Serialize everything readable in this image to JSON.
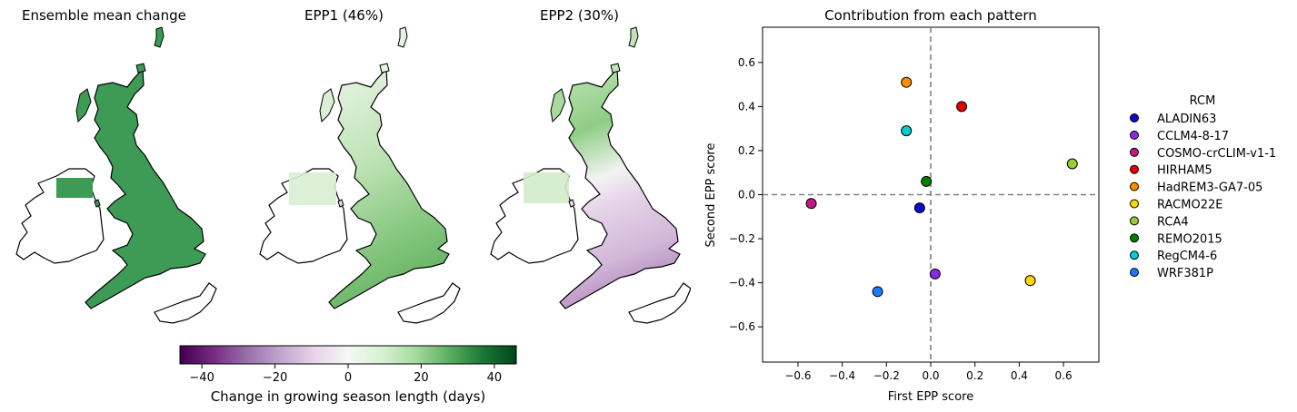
{
  "maps": [
    {
      "title": "Ensemble mean change",
      "fill": "uniform-dark-green",
      "icon": "uk-ireland-map-icon"
    },
    {
      "title": "EPP1 (46%)",
      "fill": "light-green-gradient",
      "icon": "uk-ireland-map-icon"
    },
    {
      "title": "EPP2 (30%)",
      "fill": "green-north-purple-south",
      "icon": "uk-ireland-map-icon"
    }
  ],
  "colorbar": {
    "label": "Change in growing season length (days)",
    "min": -46,
    "max": 46,
    "ticks": [
      "-40",
      "-20",
      "0",
      "20",
      "40"
    ],
    "tick_values": [
      -40,
      -20,
      0,
      20,
      40
    ],
    "colors": [
      "#40004b",
      "#762a83",
      "#9970ab",
      "#c2a5cf",
      "#e7d4e8",
      "#f7f7f7",
      "#d9f0d3",
      "#a6dba0",
      "#5aae61",
      "#1b7837",
      "#00441b"
    ]
  },
  "chart_data": {
    "type": "scatter",
    "title": "Contribution from each pattern",
    "xlabel": "First EPP score",
    "ylabel": "Second EPP score",
    "xlim": [
      -0.76,
      0.76
    ],
    "ylim": [
      -0.76,
      0.76
    ],
    "xticks": [
      "-0.6",
      "-0.4",
      "-0.2",
      "0.0",
      "0.2",
      "0.4",
      "0.6"
    ],
    "yticks": [
      "-0.6",
      "-0.4",
      "-0.2",
      "0.0",
      "0.2",
      "0.4",
      "0.6"
    ],
    "tick_values": [
      -0.6,
      -0.4,
      -0.2,
      0.0,
      0.2,
      0.4,
      0.6
    ],
    "grid": false,
    "reference_lines": {
      "x": 0,
      "y": 0,
      "style": "dashed"
    },
    "legend": {
      "title": "RCM",
      "placement": "outside-right"
    },
    "series": [
      {
        "name": "ALADIN63",
        "color": "#0a0ac8",
        "x": -0.05,
        "y": -0.06
      },
      {
        "name": "CCLM4-8-17",
        "color": "#8a2be2",
        "x": 0.02,
        "y": -0.36
      },
      {
        "name": "COSMO-crCLIM-v1-1",
        "color": "#c71585",
        "x": -0.54,
        "y": -0.04
      },
      {
        "name": "HIRHAM5",
        "color": "#e60000",
        "x": 0.14,
        "y": 0.4
      },
      {
        "name": "HadREM3-GA7-05",
        "color": "#ff8c00",
        "x": -0.11,
        "y": 0.51
      },
      {
        "name": "RACMO22E",
        "color": "#ffd700",
        "x": 0.45,
        "y": -0.39
      },
      {
        "name": "RCA4",
        "color": "#9acd32",
        "x": 0.64,
        "y": 0.14
      },
      {
        "name": "REMO2015",
        "color": "#008000",
        "x": -0.02,
        "y": 0.06
      },
      {
        "name": "RegCM4-6",
        "color": "#00ced1",
        "x": -0.11,
        "y": 0.29
      },
      {
        "name": "WRF381P",
        "color": "#1e78ff",
        "x": -0.24,
        "y": -0.44
      }
    ]
  }
}
